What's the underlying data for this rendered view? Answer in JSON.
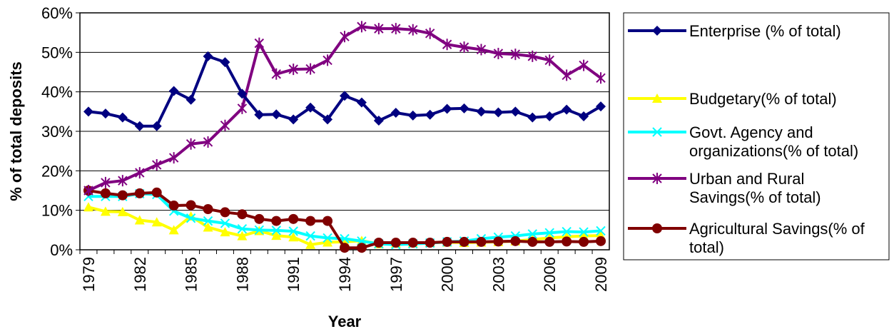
{
  "chart_data": {
    "type": "line",
    "xlabel": "Year",
    "ylabel": "% of total deposits",
    "ylim": [
      0,
      60
    ],
    "yticks": [
      "0%",
      "10%",
      "20%",
      "30%",
      "40%",
      "50%",
      "60%"
    ],
    "x": [
      1979,
      1980,
      1981,
      1982,
      1983,
      1984,
      1985,
      1986,
      1987,
      1988,
      1989,
      1990,
      1991,
      1992,
      1993,
      1994,
      1995,
      1996,
      1997,
      1998,
      1999,
      2000,
      2001,
      2002,
      2003,
      2004,
      2005,
      2006,
      2007,
      2008,
      2009
    ],
    "xtick_labels": [
      "1979",
      "1982",
      "1985",
      "1988",
      "1991",
      "1994",
      "1997",
      "2000",
      "2003",
      "2006",
      "2009"
    ],
    "grid": "horizontal",
    "legend_position": "right",
    "series": [
      {
        "name": "Enterprise (% of total)",
        "color": "#000080",
        "marker": "diamond",
        "values": [
          35.0,
          34.5,
          33.5,
          31.3,
          31.3,
          40.2,
          38.0,
          49.0,
          47.5,
          39.5,
          34.2,
          34.3,
          33.0,
          36.0,
          33.0,
          39.0,
          37.3,
          32.7,
          34.7,
          34.0,
          34.2,
          35.7,
          35.8,
          35.0,
          34.8,
          35.0,
          33.5,
          33.8,
          35.5,
          33.8,
          36.3
        ]
      },
      {
        "name": "Budgetary(% of total)",
        "color": "#FFFF00",
        "marker": "triangle",
        "values": [
          10.8,
          9.7,
          9.6,
          7.5,
          7.0,
          5.0,
          8.5,
          5.7,
          4.5,
          3.5,
          4.8,
          3.6,
          3.2,
          1.3,
          1.9,
          2.0,
          2.3,
          1.5,
          1.6,
          1.7,
          1.8,
          1.9,
          1.8,
          1.9,
          2.0,
          2.2,
          2.6,
          3.0,
          3.3,
          3.5,
          3.6
        ]
      },
      {
        "name": "Govt. Agency and organizations(% of total)",
        "color": "#00FFFF",
        "marker": "x",
        "values": [
          13.5,
          13.5,
          13.5,
          14.2,
          14.0,
          9.8,
          8.0,
          7.3,
          6.7,
          5.3,
          5.0,
          4.9,
          4.7,
          3.5,
          3.0,
          2.8,
          2.2,
          1.5,
          1.3,
          1.5,
          1.7,
          2.0,
          2.2,
          2.8,
          3.2,
          3.5,
          4.0,
          4.3,
          4.6,
          4.5,
          4.8
        ]
      },
      {
        "name": "Urban and Rural Savings(% of total)",
        "color": "#800080",
        "marker": "star",
        "values": [
          15.0,
          17.0,
          17.5,
          19.5,
          21.5,
          23.3,
          26.8,
          27.3,
          31.5,
          35.8,
          52.3,
          44.5,
          45.7,
          45.8,
          48.0,
          54.0,
          56.5,
          56.0,
          56.0,
          55.7,
          54.8,
          52.0,
          51.3,
          50.7,
          49.7,
          49.5,
          49.0,
          48.0,
          44.2,
          46.7,
          43.5
        ]
      },
      {
        "name": "Agricultural Savings(% of total)",
        "color": "#800000",
        "marker": "circle",
        "values": [
          15.0,
          14.3,
          13.8,
          14.3,
          14.5,
          11.2,
          11.3,
          10.3,
          9.5,
          9.0,
          7.8,
          7.3,
          7.8,
          7.3,
          7.3,
          0.5,
          0.5,
          1.8,
          1.8,
          1.8,
          1.8,
          2.0,
          2.0,
          2.0,
          2.1,
          2.2,
          2.0,
          2.0,
          2.1,
          2.0,
          2.2
        ]
      }
    ]
  }
}
